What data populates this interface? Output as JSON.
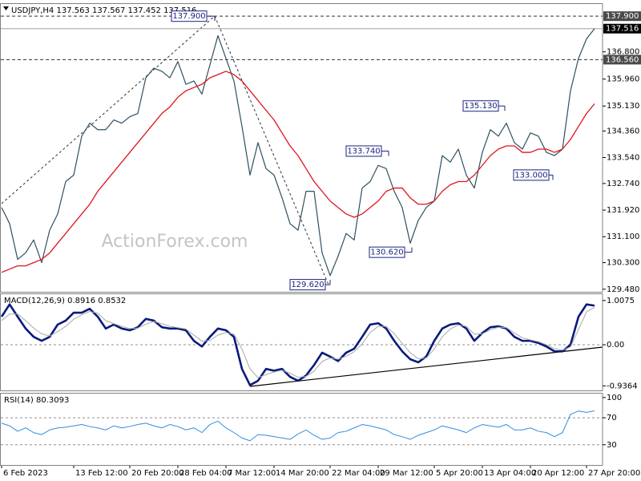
{
  "chart_data": [
    {
      "type": "line",
      "title": "USDJPY,H4  137.563 137.567 137.452 137.516",
      "watermark": "ActionForex.com",
      "categories": [
        "6 Feb 2023",
        null,
        null,
        null,
        null,
        null,
        null,
        null,
        null,
        "13 Feb 12:00",
        null,
        null,
        null,
        null,
        null,
        null,
        "20 Feb 20:00",
        null,
        null,
        null,
        null,
        null,
        "28 Feb 04:00",
        null,
        null,
        null,
        null,
        null,
        "7 Mar 12:00",
        null,
        null,
        null,
        null,
        null,
        "14 Mar 20:00",
        null,
        null,
        null,
        null,
        null,
        null,
        "22 Mar 04:00",
        null,
        null,
        null,
        null,
        null,
        "29 Mar 12:00",
        null,
        null,
        null,
        null,
        null,
        null,
        "5 Apr 20:00",
        null,
        null,
        null,
        null,
        null,
        "13 Apr 04:00",
        null,
        null,
        null,
        null,
        null,
        "20 Apr 12:00",
        null,
        null,
        null,
        null,
        null,
        null,
        "27 Apr 20:00",
        null
      ],
      "series": [
        {
          "color": "#2e5060",
          "values": [
            132.0,
            131.5,
            130.4,
            130.6,
            131.0,
            130.3,
            131.3,
            131.8,
            132.8,
            133.0,
            134.2,
            134.6,
            134.4,
            134.4,
            134.7,
            134.6,
            134.8,
            134.9,
            136.0,
            136.3,
            136.2,
            136.0,
            136.5,
            135.8,
            135.9,
            135.5,
            136.4,
            137.3,
            136.6,
            135.9,
            134.5,
            133.0,
            134.0,
            133.2,
            133.0,
            132.3,
            131.5,
            131.3,
            132.5,
            132.5,
            130.6,
            129.9,
            130.5,
            131.2,
            131.0,
            132.6,
            132.8,
            133.3,
            133.2,
            132.5,
            132.0,
            130.9,
            131.6,
            132.0,
            132.2,
            133.6,
            133.4,
            133.8,
            133.0,
            132.6,
            133.7,
            134.4,
            134.2,
            134.6,
            134.0,
            133.8,
            134.3,
            134.2,
            133.7,
            133.6,
            133.8,
            135.6,
            136.6,
            137.2,
            137.516
          ]
        },
        {
          "color": "#e0141e",
          "values": [
            130.0,
            130.1,
            130.2,
            130.2,
            130.3,
            130.4,
            130.6,
            130.9,
            131.2,
            131.5,
            131.8,
            132.1,
            132.5,
            132.8,
            133.1,
            133.4,
            133.7,
            134.0,
            134.3,
            134.6,
            134.9,
            135.1,
            135.4,
            135.6,
            135.7,
            135.8,
            136.0,
            136.1,
            136.2,
            136.1,
            135.9,
            135.6,
            135.3,
            135.0,
            134.7,
            134.3,
            133.9,
            133.6,
            133.2,
            132.8,
            132.5,
            132.2,
            132.0,
            131.8,
            131.7,
            131.8,
            132.0,
            132.2,
            132.5,
            132.6,
            132.6,
            132.3,
            132.1,
            132.1,
            132.2,
            132.5,
            132.7,
            132.8,
            132.8,
            133.0,
            133.3,
            133.6,
            133.8,
            133.9,
            133.9,
            133.7,
            133.7,
            133.8,
            133.8,
            133.7,
            133.8,
            134.1,
            134.5,
            134.9,
            135.2
          ]
        }
      ],
      "ylim": [
        129.4,
        138.3
      ],
      "yticks": [
        {
          "value": 136.8,
          "label": "136.800"
        },
        {
          "value": 135.96,
          "label": "135.960"
        },
        {
          "value": 135.13,
          "label": "135.130"
        },
        {
          "value": 134.36,
          "label": "134.360"
        },
        {
          "value": 133.54,
          "label": "133.540"
        },
        {
          "value": 132.74,
          "label": "132.740"
        },
        {
          "value": 131.92,
          "label": "131.920"
        },
        {
          "value": 131.1,
          "label": "131.100"
        },
        {
          "value": 130.3,
          "label": "130.300"
        },
        {
          "value": 129.48,
          "label": "129.480"
        }
      ],
      "hlines": [
        {
          "value": 137.9,
          "label": "137.900",
          "style": "dashed"
        },
        {
          "value": 137.516,
          "label": "137.516",
          "style": "solid"
        },
        {
          "value": 136.56,
          "label": "136.560",
          "style": "dashed"
        }
      ],
      "annotations": [
        {
          "value": 137.9,
          "label": "137.900"
        },
        {
          "value": 133.74,
          "label": "133.740"
        },
        {
          "value": 135.13,
          "label": "135.130"
        },
        {
          "value": 130.62,
          "label": "130.620"
        },
        {
          "value": 129.62,
          "label": "129.620"
        },
        {
          "value": 133.0,
          "label": "133.000"
        }
      ]
    },
    {
      "type": "line",
      "title": "MACD(12,26,9) 0.8916 0.8532",
      "series": [
        {
          "color": "#0a1a7a",
          "values": [
            0.64,
            0.92,
            0.64,
            0.37,
            0.18,
            0.09,
            0.18,
            0.46,
            0.55,
            0.73,
            0.73,
            0.82,
            0.64,
            0.37,
            0.46,
            0.37,
            0.33,
            0.4,
            0.59,
            0.55,
            0.4,
            0.37,
            0.37,
            0.33,
            0.09,
            -0.04,
            0.18,
            0.37,
            0.33,
            0.18,
            -0.55,
            -0.92,
            -0.82,
            -0.55,
            -0.59,
            -0.55,
            -0.73,
            -0.82,
            -0.7,
            -0.46,
            -0.18,
            -0.27,
            -0.37,
            -0.18,
            -0.09,
            0.18,
            0.46,
            0.49,
            0.37,
            0.09,
            -0.15,
            -0.33,
            -0.4,
            -0.27,
            0.09,
            0.37,
            0.46,
            0.49,
            0.37,
            0.09,
            0.27,
            0.4,
            0.42,
            0.37,
            0.18,
            0.09,
            0.09,
            0.04,
            -0.04,
            -0.15,
            -0.15,
            0.0,
            0.64,
            0.92,
            0.8916
          ]
        },
        {
          "color": "#a8a8a8",
          "values": [
            0.55,
            0.7,
            0.7,
            0.55,
            0.38,
            0.25,
            0.2,
            0.3,
            0.42,
            0.58,
            0.68,
            0.76,
            0.72,
            0.55,
            0.48,
            0.42,
            0.37,
            0.38,
            0.47,
            0.53,
            0.48,
            0.42,
            0.39,
            0.36,
            0.22,
            0.08,
            0.1,
            0.22,
            0.28,
            0.24,
            -0.1,
            -0.55,
            -0.75,
            -0.68,
            -0.62,
            -0.58,
            -0.65,
            -0.74,
            -0.72,
            -0.6,
            -0.38,
            -0.3,
            -0.33,
            -0.26,
            -0.16,
            0.02,
            0.28,
            0.42,
            0.42,
            0.25,
            0.03,
            -0.18,
            -0.32,
            -0.3,
            -0.1,
            0.18,
            0.36,
            0.45,
            0.42,
            0.24,
            0.25,
            0.34,
            0.4,
            0.39,
            0.27,
            0.16,
            0.11,
            0.07,
            0.0,
            -0.09,
            -0.12,
            -0.05,
            0.35,
            0.75,
            0.8532
          ]
        }
      ],
      "ylim": [
        -1.04,
        1.17
      ],
      "yticks": [
        1.0075,
        {
          "value": 0,
          "label": "0.00"
        },
        -0.9364
      ],
      "dashed_ticks": [
        1
      ]
    },
    {
      "type": "line",
      "title": "RSI(14) 80.3093",
      "series": [
        {
          "color": "#2f8ee0",
          "values": [
            62,
            58,
            50,
            55,
            48,
            45,
            52,
            55,
            56,
            58,
            60,
            57,
            55,
            52,
            58,
            55,
            57,
            60,
            62,
            58,
            55,
            60,
            57,
            52,
            55,
            48,
            60,
            65,
            55,
            48,
            40,
            36,
            45,
            44,
            42,
            40,
            38,
            46,
            52,
            44,
            38,
            40,
            48,
            50,
            55,
            60,
            58,
            55,
            52,
            45,
            42,
            38,
            44,
            48,
            52,
            58,
            55,
            52,
            48,
            55,
            60,
            58,
            56,
            60,
            52,
            52,
            55,
            50,
            48,
            42,
            48,
            75,
            80,
            78,
            80.3093
          ]
        }
      ],
      "ylim": [
        0,
        107
      ],
      "yticks": [
        100,
        70,
        30
      ],
      "dashed_ticks": [
        1,
        2
      ]
    }
  ]
}
